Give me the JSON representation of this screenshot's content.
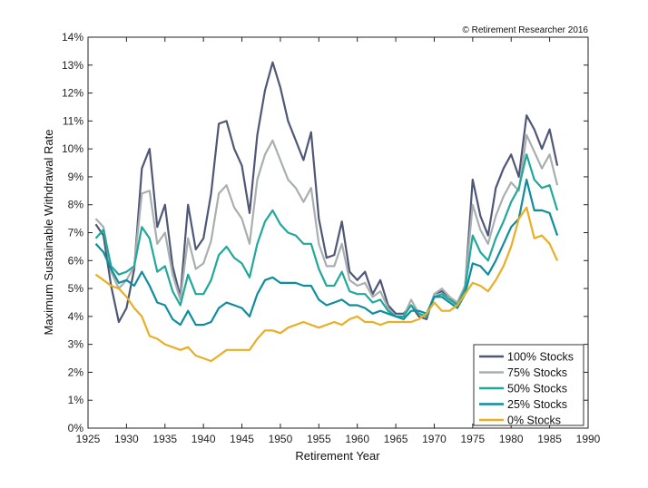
{
  "copyright": "© Retirement Researcher 2016",
  "chart_data": {
    "type": "line",
    "title": "",
    "xlabel": "Retirement Year",
    "ylabel": "Maximum Sustainable Withdrawal Rate",
    "xlim": [
      1925,
      1990
    ],
    "ylim": [
      0,
      14
    ],
    "xticks": [
      "1925",
      "1930",
      "1935",
      "1940",
      "1945",
      "1950",
      "1955",
      "1960",
      "1965",
      "1970",
      "1975",
      "1980",
      "1985",
      "1990"
    ],
    "yticks": [
      "0%",
      "1%",
      "2%",
      "3%",
      "4%",
      "5%",
      "6%",
      "7%",
      "8%",
      "9%",
      "10%",
      "11%",
      "12%",
      "13%",
      "14%"
    ],
    "grid": false,
    "legend_position": "bottom-right",
    "x": [
      1926,
      1927,
      1928,
      1929,
      1930,
      1931,
      1932,
      1933,
      1934,
      1935,
      1936,
      1937,
      1938,
      1939,
      1940,
      1941,
      1942,
      1943,
      1944,
      1945,
      1946,
      1947,
      1948,
      1949,
      1950,
      1951,
      1952,
      1953,
      1954,
      1955,
      1956,
      1957,
      1958,
      1959,
      1960,
      1961,
      1962,
      1963,
      1964,
      1965,
      1966,
      1967,
      1968,
      1969,
      1970,
      1971,
      1972,
      1973,
      1974,
      1975,
      1976,
      1977,
      1978,
      1979,
      1980,
      1981,
      1982,
      1983,
      1984,
      1985,
      1986
    ],
    "series": [
      {
        "name": "100% Stocks",
        "color": "#4f5777",
        "values": [
          7.3,
          6.9,
          5.1,
          3.8,
          4.3,
          5.7,
          9.3,
          10.0,
          7.2,
          8.0,
          5.8,
          4.7,
          8.0,
          6.4,
          6.8,
          8.4,
          10.9,
          11.0,
          10.0,
          9.4,
          7.7,
          10.5,
          12.1,
          13.1,
          12.2,
          11.0,
          10.3,
          9.6,
          10.6,
          7.5,
          6.1,
          6.2,
          7.4,
          5.6,
          5.3,
          5.6,
          4.8,
          5.3,
          4.4,
          4.1,
          4.1,
          4.4,
          4.0,
          3.9,
          4.8,
          4.9,
          4.7,
          4.4,
          5.0,
          8.9,
          7.6,
          6.9,
          8.6,
          9.3,
          9.8,
          9.0,
          11.2,
          10.7,
          10.0,
          10.7,
          9.4
        ]
      },
      {
        "name": "75% Stocks",
        "color": "#a9aeae",
        "values": [
          7.5,
          7.2,
          5.6,
          5.0,
          5.3,
          5.8,
          8.4,
          8.5,
          6.6,
          7.0,
          5.5,
          4.6,
          6.8,
          5.7,
          5.9,
          6.7,
          8.4,
          8.7,
          7.9,
          7.5,
          6.6,
          8.9,
          9.8,
          10.3,
          9.6,
          8.9,
          8.6,
          8.1,
          8.6,
          6.6,
          5.8,
          5.8,
          6.6,
          5.3,
          5.1,
          5.2,
          4.7,
          4.9,
          4.3,
          4.0,
          4.0,
          4.6,
          4.1,
          4.0,
          4.8,
          5.0,
          4.7,
          4.5,
          5.1,
          8.0,
          7.1,
          6.6,
          7.6,
          8.3,
          8.8,
          8.5,
          10.5,
          9.9,
          9.3,
          9.8,
          8.7
        ]
      },
      {
        "name": "50% Stocks",
        "color": "#20a89a",
        "values": [
          6.8,
          7.1,
          5.8,
          5.5,
          5.6,
          5.8,
          7.2,
          6.8,
          5.6,
          5.8,
          4.9,
          4.4,
          5.5,
          4.8,
          4.8,
          5.3,
          6.2,
          6.5,
          6.1,
          5.9,
          5.4,
          6.6,
          7.4,
          7.8,
          7.3,
          7.0,
          6.9,
          6.6,
          6.6,
          5.7,
          5.1,
          5.1,
          5.6,
          4.9,
          4.8,
          4.8,
          4.5,
          4.6,
          4.2,
          4.0,
          4.0,
          4.4,
          4.1,
          4.0,
          4.7,
          4.8,
          4.6,
          4.4,
          5.0,
          6.9,
          6.3,
          6.0,
          6.8,
          7.4,
          8.1,
          8.6,
          9.8,
          8.9,
          8.6,
          8.7,
          7.8
        ]
      },
      {
        "name": "25% Stocks",
        "color": "#0f8d9e",
        "values": [
          6.6,
          6.3,
          5.7,
          5.2,
          5.3,
          5.1,
          5.6,
          5.1,
          4.5,
          4.4,
          3.9,
          3.7,
          4.2,
          3.7,
          3.7,
          3.8,
          4.3,
          4.5,
          4.4,
          4.3,
          4.0,
          4.8,
          5.3,
          5.4,
          5.2,
          5.2,
          5.2,
          5.1,
          5.1,
          4.6,
          4.4,
          4.5,
          4.6,
          4.4,
          4.4,
          4.3,
          4.1,
          4.2,
          4.1,
          4.0,
          3.9,
          4.2,
          4.2,
          4.1,
          4.7,
          4.7,
          4.5,
          4.3,
          4.8,
          5.9,
          5.8,
          5.5,
          6.0,
          6.6,
          7.2,
          7.5,
          8.9,
          7.8,
          7.8,
          7.7,
          6.9
        ]
      },
      {
        "name": "0% Stocks",
        "color": "#e9ae25",
        "values": [
          5.5,
          5.3,
          5.1,
          5.0,
          4.7,
          4.3,
          4.0,
          3.3,
          3.2,
          3.0,
          2.9,
          2.8,
          2.9,
          2.6,
          2.5,
          2.4,
          2.6,
          2.8,
          2.8,
          2.8,
          2.8,
          3.2,
          3.5,
          3.5,
          3.4,
          3.6,
          3.7,
          3.8,
          3.7,
          3.6,
          3.7,
          3.8,
          3.7,
          3.9,
          4.0,
          3.8,
          3.8,
          3.7,
          3.8,
          3.8,
          3.8,
          3.8,
          3.9,
          4.1,
          4.5,
          4.2,
          4.2,
          4.4,
          4.8,
          5.2,
          5.1,
          4.9,
          5.3,
          5.8,
          6.5,
          7.5,
          7.9,
          6.8,
          6.9,
          6.6,
          6.0
        ]
      }
    ]
  }
}
